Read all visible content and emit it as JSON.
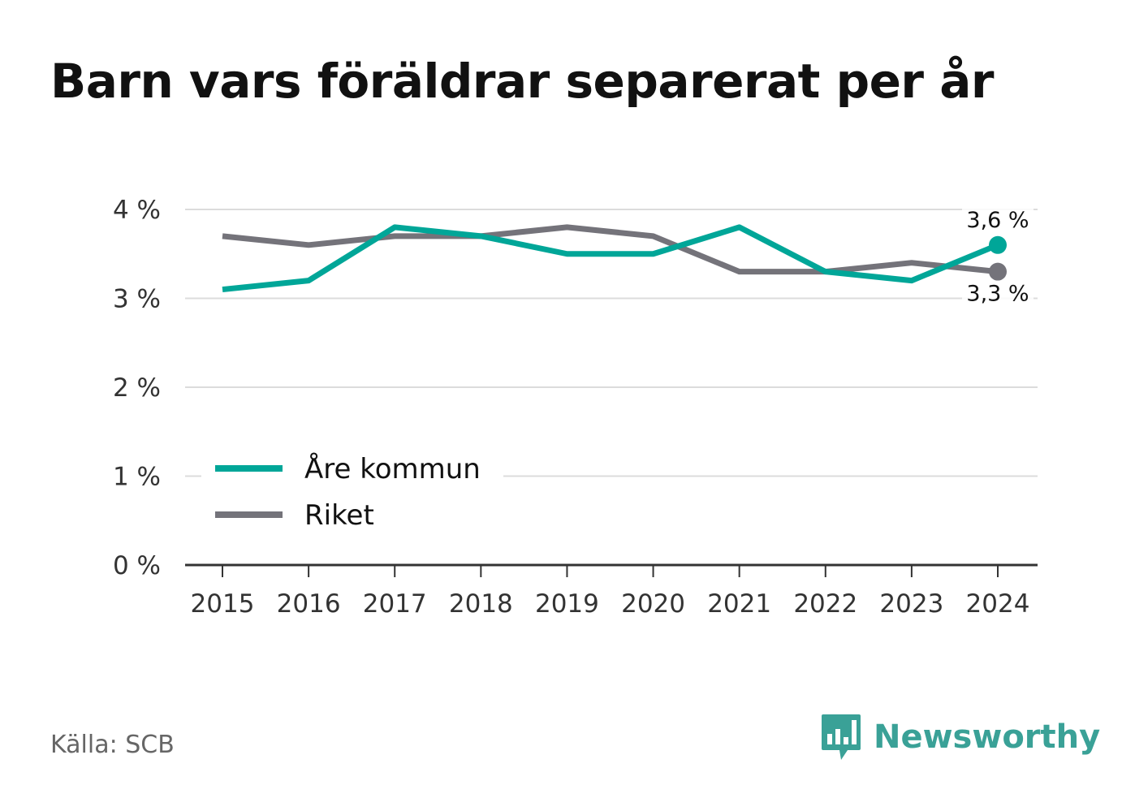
{
  "title": "Barn vars föräldrar separerat per år",
  "source": "Källa: SCB",
  "brand": {
    "name": "Newsworthy",
    "icon": "bar-chart-speech-bubble-icon"
  },
  "chart_data": {
    "type": "line",
    "title": "Barn vars föräldrar separerat per år",
    "xlabel": "",
    "ylabel": "",
    "x": [
      "2015",
      "2016",
      "2017",
      "2018",
      "2019",
      "2020",
      "2021",
      "2022",
      "2023",
      "2024"
    ],
    "ylim": [
      0,
      4
    ],
    "yticks": [
      0,
      1,
      2,
      3,
      4
    ],
    "ytick_labels": [
      "0 %",
      "1 %",
      "2 %",
      "3 %",
      "4 %"
    ],
    "grid": true,
    "legend_position": "lower-left",
    "series": [
      {
        "name": "Åre kommun",
        "color": "#00a698",
        "values": [
          3.1,
          3.2,
          3.8,
          3.7,
          3.5,
          3.5,
          3.8,
          3.3,
          3.2,
          3.6
        ],
        "end_label": "3,6 %"
      },
      {
        "name": "Riket",
        "color": "#74737a",
        "values": [
          3.7,
          3.6,
          3.7,
          3.7,
          3.8,
          3.7,
          3.3,
          3.3,
          3.4,
          3.3
        ],
        "end_label": "3,3 %"
      }
    ]
  }
}
